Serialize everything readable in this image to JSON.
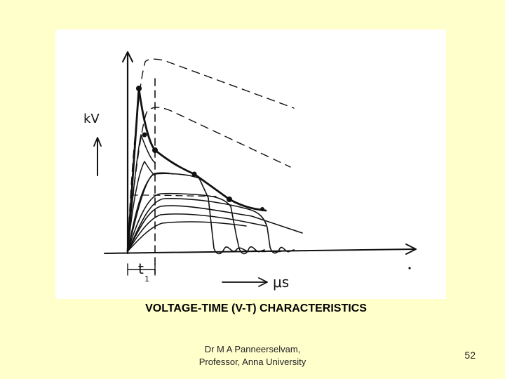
{
  "diagram": {
    "y_axis_label": "kV",
    "t_label": "t",
    "t_subscript": "1",
    "x_axis_label": "μs"
  },
  "caption": "VOLTAGE-TIME (V-T) CHARACTERISTICS",
  "footer": {
    "line1": "Dr M A Panneerselvam,",
    "line2": "Professor, Anna University"
  },
  "page_number": "52"
}
